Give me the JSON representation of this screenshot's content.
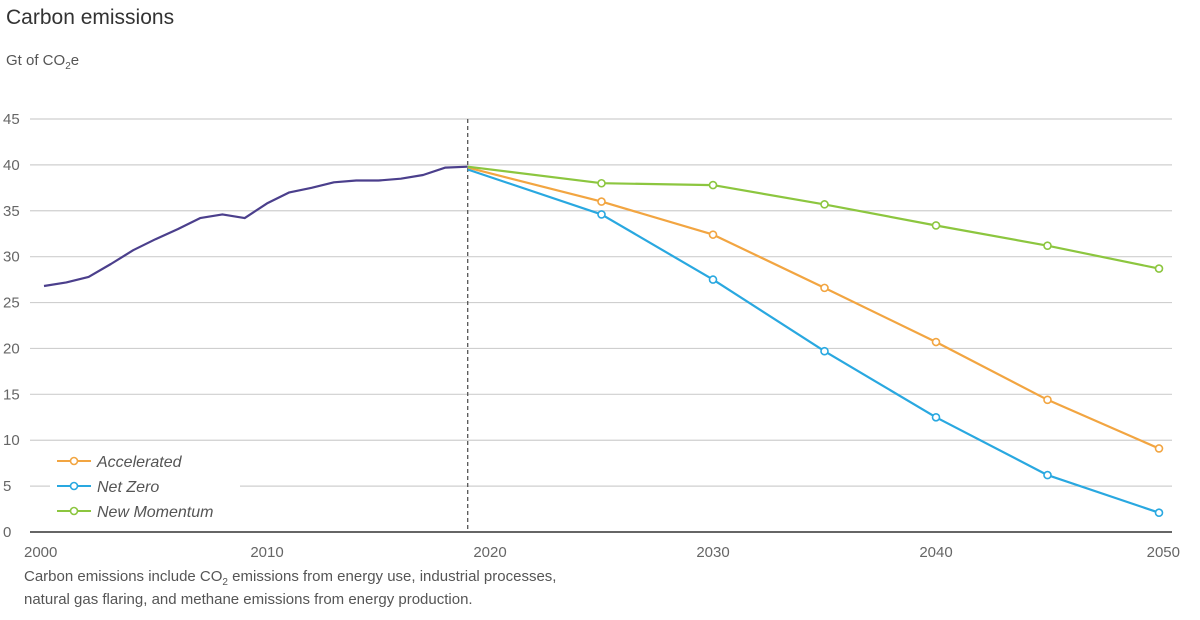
{
  "chart_data": {
    "type": "line",
    "title": "Carbon emissions",
    "ylabel": {
      "prefix": "Gt of CO",
      "sub": "2",
      "suffix": "e"
    },
    "xlim": [
      2000,
      2050
    ],
    "ylim": [
      0,
      45
    ],
    "xticks": [
      2000,
      2010,
      2020,
      2030,
      2040,
      2050
    ],
    "yticks": [
      0,
      5,
      10,
      15,
      20,
      25,
      30,
      35,
      40,
      45
    ],
    "grid": true,
    "divider_year": 2019,
    "legend_position": "bottom-left",
    "series": [
      {
        "key": "historical",
        "color": "#4b3f8c",
        "markers": false,
        "x": [
          2000,
          2001,
          2002,
          2003,
          2004,
          2005,
          2006,
          2007,
          2008,
          2009,
          2010,
          2011,
          2012,
          2013,
          2014,
          2015,
          2016,
          2017,
          2018,
          2019
        ],
        "y": [
          26.8,
          27.2,
          27.8,
          29.2,
          30.7,
          31.9,
          33.0,
          34.2,
          34.6,
          34.2,
          35.8,
          37.0,
          37.5,
          38.1,
          38.3,
          38.3,
          38.5,
          38.9,
          39.7,
          39.8
        ]
      },
      {
        "name": "Accelerated",
        "color": "#f2a541",
        "markers": true,
        "x": [
          2019,
          2025,
          2030,
          2035,
          2040,
          2045,
          2050
        ],
        "y": [
          39.7,
          36.0,
          32.4,
          26.6,
          20.7,
          14.4,
          9.1
        ]
      },
      {
        "name": "Net Zero",
        "color": "#29a8e0",
        "markers": true,
        "x": [
          2019,
          2025,
          2030,
          2035,
          2040,
          2045,
          2050
        ],
        "y": [
          39.5,
          34.6,
          27.5,
          19.7,
          12.5,
          6.2,
          2.1
        ]
      },
      {
        "name": "New Momentum",
        "color": "#8cc63f",
        "markers": true,
        "x": [
          2019,
          2025,
          2030,
          2035,
          2040,
          2045,
          2050
        ],
        "y": [
          39.8,
          38.0,
          37.8,
          35.7,
          33.4,
          31.2,
          28.7
        ]
      }
    ],
    "note": {
      "part1": "Carbon emissions include CO",
      "sub": "2",
      "part2": " emissions from energy use, industrial processes,",
      "line2": "natural gas flaring, and methane emissions from energy production."
    }
  }
}
